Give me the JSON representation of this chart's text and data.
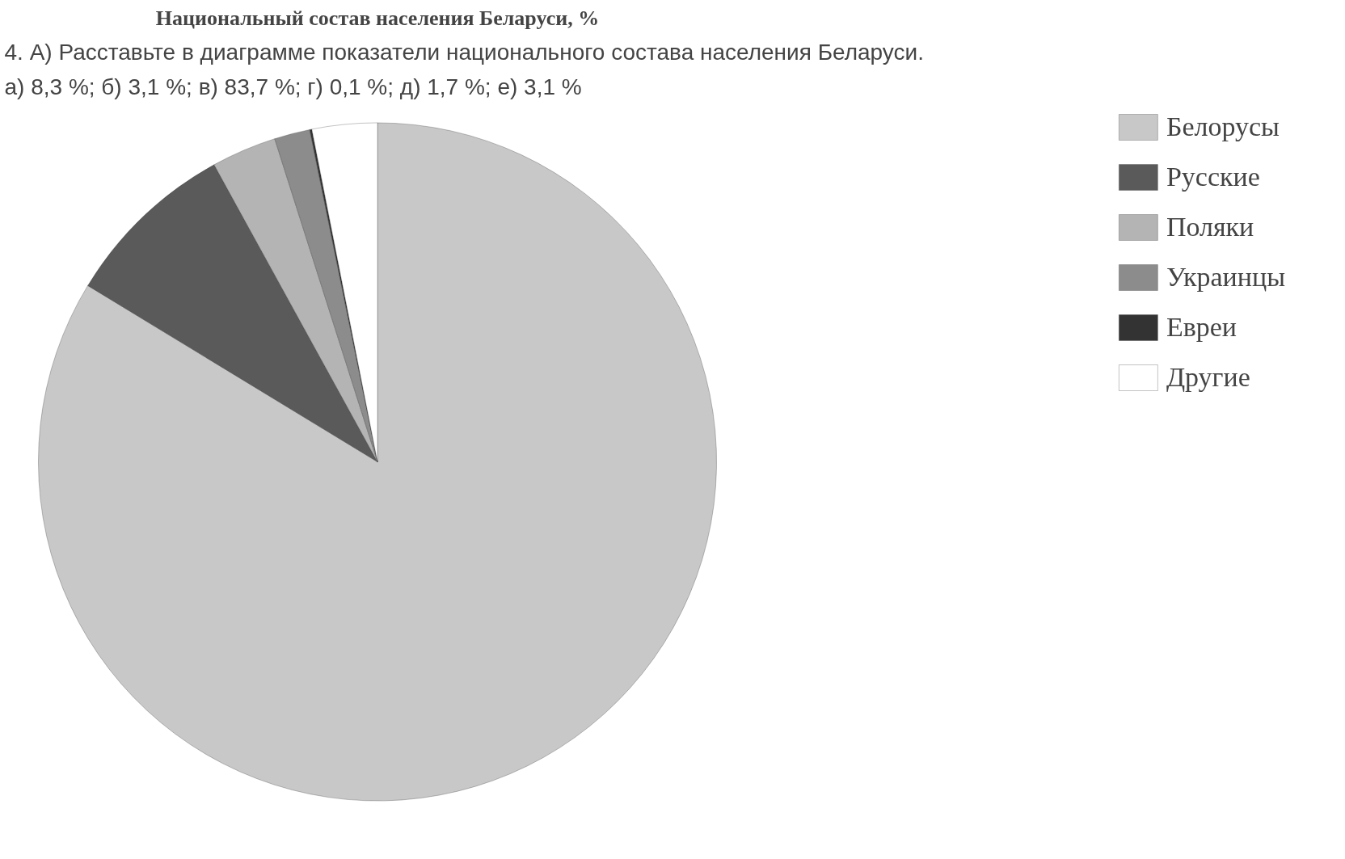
{
  "chart_data": {
    "type": "pie",
    "title": "Национальный состав населения Беларуси, %",
    "annotations": [
      "4. А) Расставьте в диаграмме показатели национального состава населения Беларуси.",
      "а) 8,3 %;  б) 3,1 %;  в) 83,7 %;  г) 0,1 %;  д) 1,7 %;  е) 3,1 %"
    ],
    "categories": [
      "Белорусы",
      "Русские",
      "Поляки",
      "Украинцы",
      "Евреи",
      "Другие"
    ],
    "values": [
      83.7,
      8.3,
      3.1,
      1.7,
      0.1,
      3.1
    ],
    "colors": [
      "#c8c8c8",
      "#5a5a5a",
      "#b4b4b4",
      "#8c8c8c",
      "#333333",
      "#ffffff"
    ],
    "legend": "right"
  }
}
